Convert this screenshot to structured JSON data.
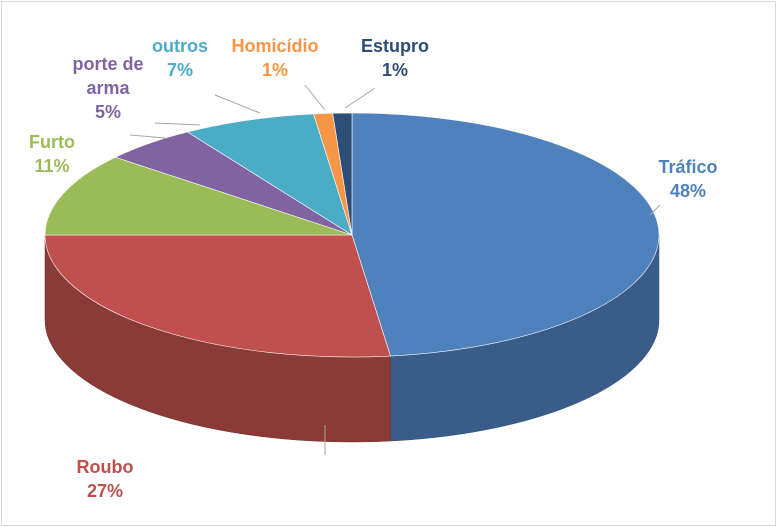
{
  "chart_data": {
    "type": "pie",
    "categories": [
      "Tráfico",
      "Roubo",
      "Furto",
      "porte de arma",
      "outros",
      "Homicídio",
      "Estupro"
    ],
    "values": [
      48,
      27,
      11,
      5,
      7,
      1,
      1
    ],
    "value_labels": [
      "48%",
      "27%",
      "11%",
      "5%",
      "7%",
      "1%",
      "1%"
    ],
    "colors": [
      "#4f81bd",
      "#c0504d",
      "#9bbb59",
      "#8064a2",
      "#4bacc6",
      "#f79646",
      "#2c4d75"
    ]
  }
}
